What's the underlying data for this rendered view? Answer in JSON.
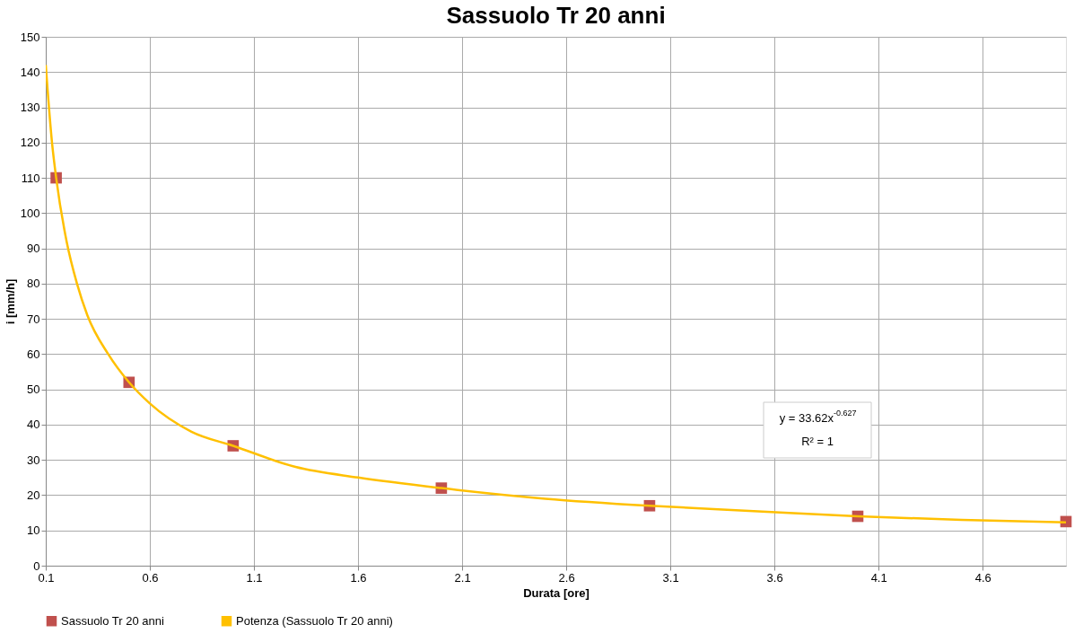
{
  "chart_data": {
    "type": "scatter",
    "title": "Sassuolo Tr 20 anni",
    "xlabel": "Durata [ore]",
    "ylabel": "i [mm/h]",
    "series": [
      {
        "name": "Sassuolo Tr 20 anni",
        "color": "#c0504d",
        "marker": "square",
        "x": [
          0.15,
          0.5,
          1,
          2,
          3,
          4,
          5
        ],
        "values": [
          110,
          52,
          34,
          22,
          17,
          14,
          12.5
        ]
      },
      {
        "name": "Potenza (Sassuolo Tr 20 anni)",
        "type": "line",
        "color": "#ffc000",
        "line_style": "solid",
        "marker": "none",
        "x": [
          0.1,
          0.13,
          0.15,
          0.2,
          0.25,
          0.3,
          0.4,
          0.5,
          0.6,
          0.8,
          1,
          1.3,
          1.6,
          2,
          2.5,
          3,
          3.5,
          4,
          4.5,
          5
        ],
        "values": [
          142,
          120,
          110,
          92,
          80,
          71,
          60,
          52,
          46,
          38,
          34,
          28,
          25,
          22,
          19,
          17,
          15.5,
          14,
          13,
          12.3
        ]
      }
    ],
    "xlim": [
      0.1,
      5.0
    ],
    "xticks": [
      0.1,
      0.6,
      1.1,
      1.6,
      2.1,
      2.6,
      3.1,
      3.6,
      4.1,
      4.6
    ],
    "ylim": [
      0,
      150
    ],
    "yticks": [
      0,
      10,
      20,
      30,
      40,
      50,
      60,
      70,
      80,
      90,
      100,
      110,
      120,
      130,
      140,
      150
    ],
    "grid": true,
    "legend": "bottom",
    "annotations": [
      "y = 33.62x$^{-0.627}$",
      "R² = 1"
    ]
  }
}
